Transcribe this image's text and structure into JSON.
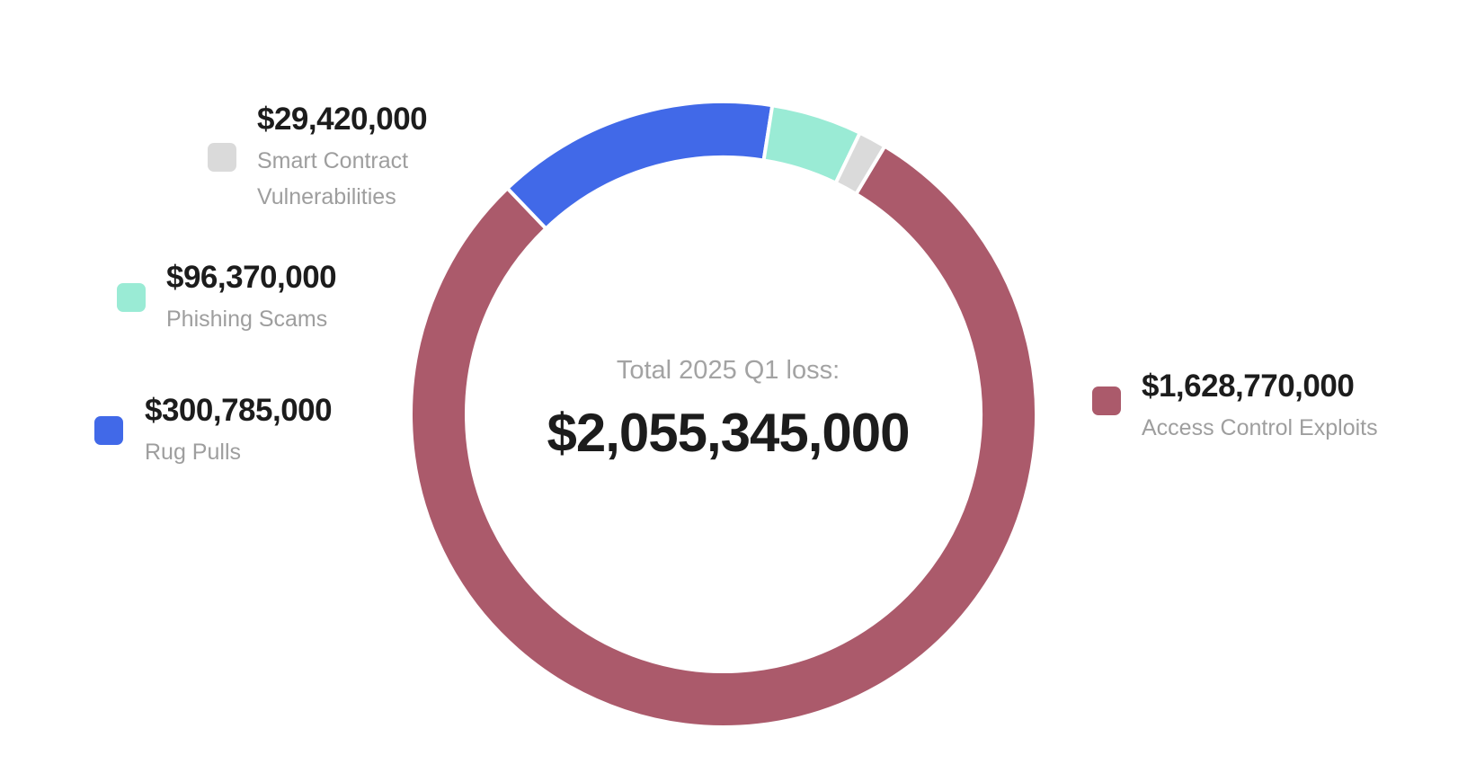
{
  "chart_data": {
    "type": "pie",
    "variant": "donut",
    "center_label": "Total 2025 Q1 loss:",
    "center_value": "$2,055,345,000",
    "total": 2055345000,
    "slices": [
      {
        "label": "Access Control Exploits",
        "value": 1628770000,
        "value_text": "$1,628,770,000",
        "color": "#AB5A6B"
      },
      {
        "label": "Rug Pulls",
        "value": 300785000,
        "value_text": "$300,785,000",
        "color": "#4169E8"
      },
      {
        "label": "Phishing Scams",
        "value": 96370000,
        "value_text": "$96,370,000",
        "color": "#9AEBD5"
      },
      {
        "label": "Smart Contract Vulnerabilities",
        "value": 29420000,
        "value_text": "$29,420,000",
        "color": "#DADADA"
      }
    ]
  }
}
